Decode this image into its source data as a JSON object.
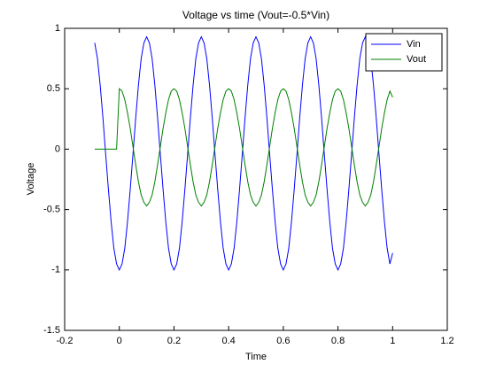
{
  "chart_data": {
    "type": "line",
    "title": "Voltage vs time (Vout=-0.5*Vin)",
    "x_label": "Time",
    "y_label": "Voltage",
    "x": [
      -0.09,
      -0.08,
      -0.07,
      -0.06,
      -0.05,
      -0.04,
      -0.03,
      -0.02,
      -0.01,
      0,
      0.01,
      0.02,
      0.03,
      0.04,
      0.05,
      0.06,
      0.07,
      0.08,
      0.09,
      0.1,
      0.11,
      0.12,
      0.13,
      0.14,
      0.15,
      0.16,
      0.17,
      0.18,
      0.19,
      0.2,
      0.21,
      0.22,
      0.23,
      0.24,
      0.25,
      0.26,
      0.27,
      0.28,
      0.29,
      0.3,
      0.31,
      0.32,
      0.33,
      0.34,
      0.35,
      0.36,
      0.37,
      0.38,
      0.39,
      0.4,
      0.41,
      0.42,
      0.43,
      0.44,
      0.45,
      0.46,
      0.47,
      0.48,
      0.49,
      0.5,
      0.51,
      0.52,
      0.53,
      0.54,
      0.55,
      0.56,
      0.57,
      0.58,
      0.59,
      0.6,
      0.61,
      0.62,
      0.63,
      0.64,
      0.65,
      0.66,
      0.67,
      0.68,
      0.69,
      0.7,
      0.71,
      0.72,
      0.73,
      0.74,
      0.75,
      0.76,
      0.77,
      0.78,
      0.79,
      0.8,
      0.81,
      0.82,
      0.83,
      0.84,
      0.85,
      0.86,
      0.87,
      0.88,
      0.89,
      0.9,
      0.91,
      0.92,
      0.93,
      0.94,
      0.95,
      0.96,
      0.97,
      0.98,
      0.99,
      1
    ],
    "series": [
      {
        "name": "Vin",
        "color": "#0000ff",
        "values": [
          0.88,
          0.75,
          0.53,
          0.26,
          -0.04,
          -0.33,
          -0.6,
          -0.82,
          -0.95,
          -1,
          -0.95,
          -0.82,
          -0.6,
          -0.33,
          -0.04,
          0.26,
          0.53,
          0.75,
          0.88,
          0.93,
          0.88,
          0.75,
          0.53,
          0.26,
          -0.04,
          -0.33,
          -0.6,
          -0.82,
          -0.95,
          -1,
          -0.95,
          -0.82,
          -0.6,
          -0.33,
          -0.04,
          0.26,
          0.53,
          0.75,
          0.88,
          0.93,
          0.88,
          0.75,
          0.53,
          0.26,
          -0.04,
          -0.33,
          -0.6,
          -0.82,
          -0.95,
          -1,
          -0.95,
          -0.82,
          -0.6,
          -0.33,
          -0.04,
          0.26,
          0.53,
          0.75,
          0.88,
          0.93,
          0.88,
          0.75,
          0.53,
          0.26,
          -0.04,
          -0.33,
          -0.6,
          -0.82,
          -0.95,
          -1,
          -0.95,
          -0.82,
          -0.6,
          -0.33,
          -0.04,
          0.26,
          0.53,
          0.75,
          0.88,
          0.93,
          0.88,
          0.75,
          0.53,
          0.26,
          -0.04,
          -0.33,
          -0.6,
          -0.82,
          -0.95,
          -1,
          -0.95,
          -0.82,
          -0.6,
          -0.33,
          -0.04,
          0.26,
          0.53,
          0.75,
          0.88,
          0.93,
          0.88,
          0.75,
          0.53,
          0.26,
          -0.04,
          -0.33,
          -0.6,
          -0.82,
          -0.95,
          -0.86
        ]
      },
      {
        "name": "Vout",
        "color": "#008000",
        "values": [
          0,
          0,
          0,
          0,
          0,
          0,
          0,
          0,
          0,
          0.5,
          0.48,
          0.41,
          0.3,
          0.17,
          0.02,
          -0.13,
          -0.27,
          -0.38,
          -0.44,
          -0.47,
          -0.44,
          -0.38,
          -0.27,
          -0.13,
          0.02,
          0.17,
          0.3,
          0.41,
          0.48,
          0.5,
          0.48,
          0.41,
          0.3,
          0.17,
          0.02,
          -0.13,
          -0.27,
          -0.38,
          -0.44,
          -0.47,
          -0.44,
          -0.38,
          -0.27,
          -0.13,
          0.02,
          0.17,
          0.3,
          0.41,
          0.48,
          0.5,
          0.48,
          0.41,
          0.3,
          0.17,
          0.02,
          -0.13,
          -0.27,
          -0.38,
          -0.44,
          -0.47,
          -0.44,
          -0.38,
          -0.27,
          -0.13,
          0.02,
          0.17,
          0.3,
          0.41,
          0.48,
          0.5,
          0.48,
          0.41,
          0.3,
          0.17,
          0.02,
          -0.13,
          -0.27,
          -0.38,
          -0.44,
          -0.47,
          -0.44,
          -0.38,
          -0.27,
          -0.13,
          0.02,
          0.17,
          0.3,
          0.41,
          0.48,
          0.5,
          0.48,
          0.41,
          0.3,
          0.17,
          0.02,
          -0.13,
          -0.27,
          -0.38,
          -0.44,
          -0.47,
          -0.44,
          -0.38,
          -0.27,
          -0.13,
          0.02,
          0.17,
          0.3,
          0.41,
          0.48,
          0.43
        ]
      }
    ],
    "xlim": [
      -0.2,
      1.2
    ],
    "xticks": [
      -0.2,
      0,
      0.2,
      0.4,
      0.6,
      0.8,
      1,
      1.2
    ],
    "ylim": [
      -1.5,
      1
    ],
    "yticks": [
      -1.5,
      -1,
      -0.5,
      0,
      0.5,
      1
    ],
    "grid": false,
    "legend": "northeast"
  }
}
